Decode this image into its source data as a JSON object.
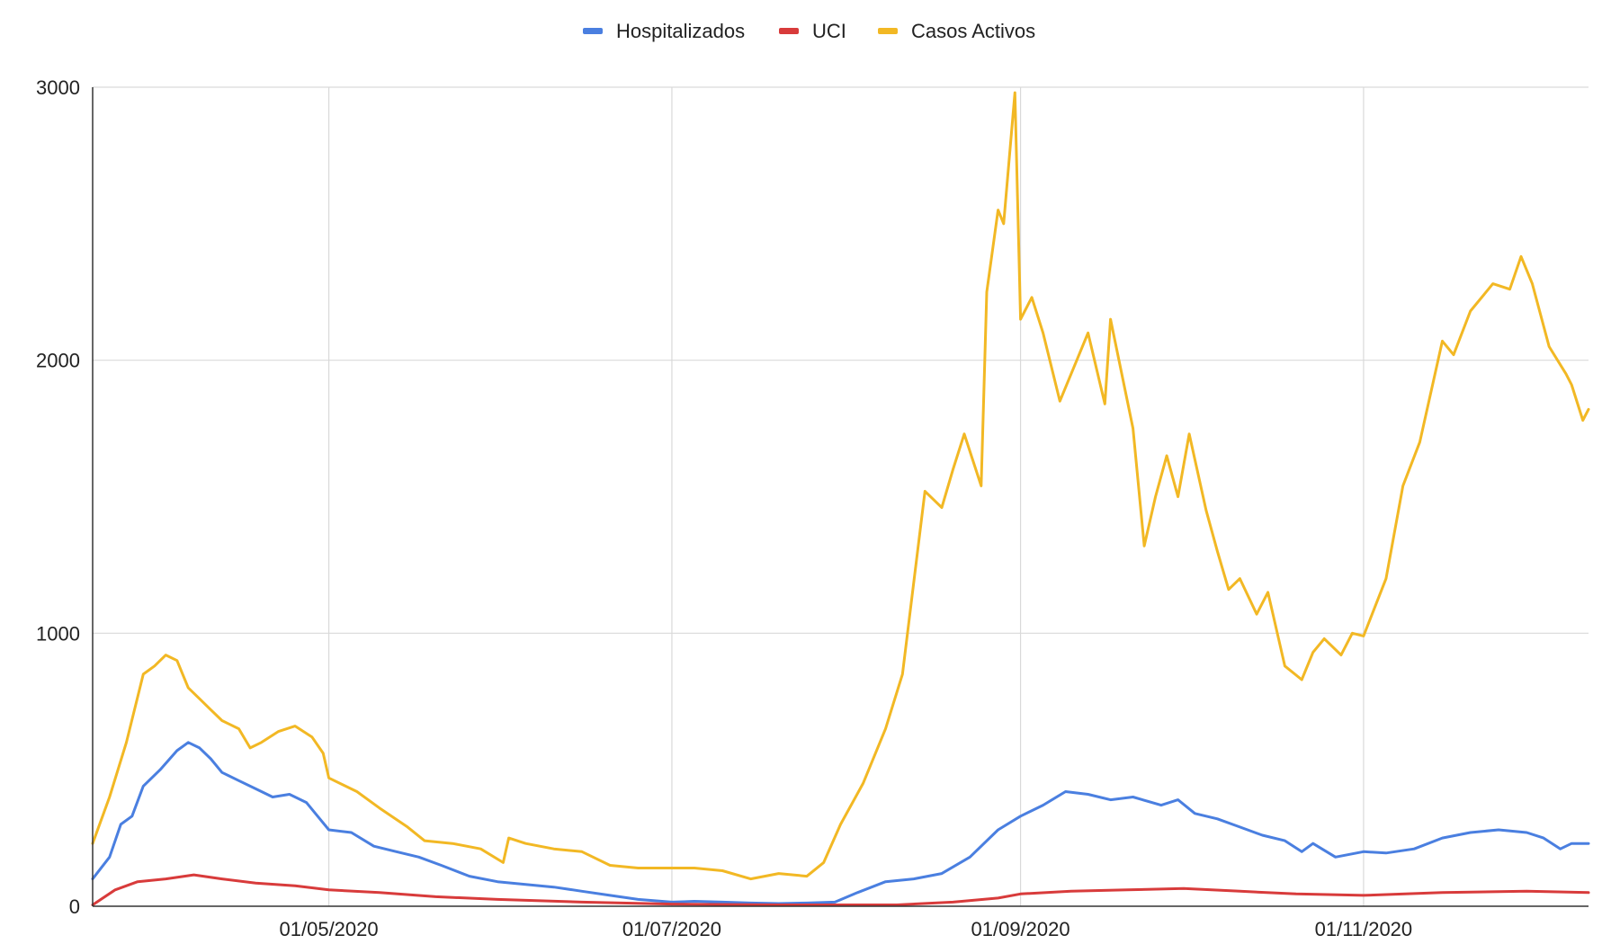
{
  "chart_data": {
    "type": "line",
    "title": "",
    "xlabel": "",
    "ylabel": "",
    "ylim": [
      0,
      3000
    ],
    "y_ticks": [
      0,
      1000,
      2000,
      3000
    ],
    "y_tick_labels": [
      "0",
      "1000",
      "2000",
      "3000"
    ],
    "xlim": [
      "2020-03-20",
      "2020-12-11"
    ],
    "x_ticks": [
      "2020-05-01",
      "2020-07-01",
      "2020-09-01",
      "2020-11-01"
    ],
    "x_tick_labels": [
      "01/05/2020",
      "01/07/2020",
      "01/09/2020",
      "01/11/2020"
    ],
    "grid": true,
    "legend_position": "top",
    "series": [
      {
        "name": "Hospitalizados",
        "color": "#4a7fe0",
        "points": [
          [
            "2020-03-20",
            100
          ],
          [
            "2020-03-23",
            180
          ],
          [
            "2020-03-25",
            300
          ],
          [
            "2020-03-27",
            330
          ],
          [
            "2020-03-29",
            440
          ],
          [
            "2020-04-01",
            500
          ],
          [
            "2020-04-04",
            570
          ],
          [
            "2020-04-06",
            600
          ],
          [
            "2020-04-08",
            580
          ],
          [
            "2020-04-10",
            540
          ],
          [
            "2020-04-12",
            490
          ],
          [
            "2020-04-15",
            460
          ],
          [
            "2020-04-18",
            430
          ],
          [
            "2020-04-21",
            400
          ],
          [
            "2020-04-24",
            410
          ],
          [
            "2020-04-27",
            380
          ],
          [
            "2020-04-29",
            330
          ],
          [
            "2020-05-01",
            280
          ],
          [
            "2020-05-05",
            270
          ],
          [
            "2020-05-09",
            220
          ],
          [
            "2020-05-13",
            200
          ],
          [
            "2020-05-17",
            180
          ],
          [
            "2020-05-21",
            150
          ],
          [
            "2020-05-26",
            110
          ],
          [
            "2020-05-31",
            90
          ],
          [
            "2020-06-05",
            80
          ],
          [
            "2020-06-10",
            70
          ],
          [
            "2020-06-15",
            55
          ],
          [
            "2020-06-20",
            40
          ],
          [
            "2020-06-25",
            25
          ],
          [
            "2020-07-01",
            15
          ],
          [
            "2020-07-05",
            18
          ],
          [
            "2020-07-10",
            15
          ],
          [
            "2020-07-15",
            12
          ],
          [
            "2020-07-20",
            10
          ],
          [
            "2020-07-25",
            12
          ],
          [
            "2020-07-30",
            15
          ],
          [
            "2020-08-03",
            50
          ],
          [
            "2020-08-08",
            90
          ],
          [
            "2020-08-13",
            100
          ],
          [
            "2020-08-18",
            120
          ],
          [
            "2020-08-23",
            180
          ],
          [
            "2020-08-28",
            280
          ],
          [
            "2020-09-01",
            330
          ],
          [
            "2020-09-05",
            370
          ],
          [
            "2020-09-09",
            420
          ],
          [
            "2020-09-13",
            410
          ],
          [
            "2020-09-17",
            390
          ],
          [
            "2020-09-21",
            400
          ],
          [
            "2020-09-26",
            370
          ],
          [
            "2020-09-29",
            390
          ],
          [
            "2020-10-02",
            340
          ],
          [
            "2020-10-06",
            320
          ],
          [
            "2020-10-10",
            290
          ],
          [
            "2020-10-14",
            260
          ],
          [
            "2020-10-18",
            240
          ],
          [
            "2020-10-21",
            200
          ],
          [
            "2020-10-23",
            230
          ],
          [
            "2020-10-27",
            180
          ],
          [
            "2020-11-01",
            200
          ],
          [
            "2020-11-05",
            195
          ],
          [
            "2020-11-10",
            210
          ],
          [
            "2020-11-15",
            250
          ],
          [
            "2020-11-20",
            270
          ],
          [
            "2020-11-25",
            280
          ],
          [
            "2020-11-30",
            270
          ],
          [
            "2020-12-03",
            250
          ],
          [
            "2020-12-06",
            210
          ],
          [
            "2020-12-08",
            230
          ],
          [
            "2020-12-11",
            230
          ]
        ]
      },
      {
        "name": "UCI",
        "color": "#d83b3b",
        "points": [
          [
            "2020-03-20",
            5
          ],
          [
            "2020-03-24",
            60
          ],
          [
            "2020-03-28",
            90
          ],
          [
            "2020-04-02",
            100
          ],
          [
            "2020-04-07",
            115
          ],
          [
            "2020-04-12",
            100
          ],
          [
            "2020-04-18",
            85
          ],
          [
            "2020-04-25",
            75
          ],
          [
            "2020-05-01",
            60
          ],
          [
            "2020-05-10",
            50
          ],
          [
            "2020-05-20",
            35
          ],
          [
            "2020-05-31",
            25
          ],
          [
            "2020-06-15",
            15
          ],
          [
            "2020-07-01",
            8
          ],
          [
            "2020-07-20",
            5
          ],
          [
            "2020-08-10",
            5
          ],
          [
            "2020-08-20",
            15
          ],
          [
            "2020-08-28",
            30
          ],
          [
            "2020-09-01",
            45
          ],
          [
            "2020-09-10",
            55
          ],
          [
            "2020-09-20",
            60
          ],
          [
            "2020-09-30",
            65
          ],
          [
            "2020-10-10",
            55
          ],
          [
            "2020-10-20",
            45
          ],
          [
            "2020-11-01",
            40
          ],
          [
            "2020-11-15",
            50
          ],
          [
            "2020-11-30",
            55
          ],
          [
            "2020-12-11",
            50
          ]
        ]
      },
      {
        "name": "Casos Activos",
        "color": "#f2b824",
        "points": [
          [
            "2020-03-20",
            230
          ],
          [
            "2020-03-23",
            400
          ],
          [
            "2020-03-26",
            600
          ],
          [
            "2020-03-29",
            850
          ],
          [
            "2020-03-31",
            880
          ],
          [
            "2020-04-02",
            920
          ],
          [
            "2020-04-04",
            900
          ],
          [
            "2020-04-06",
            800
          ],
          [
            "2020-04-08",
            760
          ],
          [
            "2020-04-10",
            720
          ],
          [
            "2020-04-12",
            680
          ],
          [
            "2020-04-15",
            650
          ],
          [
            "2020-04-17",
            580
          ],
          [
            "2020-04-19",
            600
          ],
          [
            "2020-04-22",
            640
          ],
          [
            "2020-04-25",
            660
          ],
          [
            "2020-04-28",
            620
          ],
          [
            "2020-04-30",
            560
          ],
          [
            "2020-05-01",
            470
          ],
          [
            "2020-05-06",
            420
          ],
          [
            "2020-05-10",
            360
          ],
          [
            "2020-05-15",
            290
          ],
          [
            "2020-05-18",
            240
          ],
          [
            "2020-05-23",
            230
          ],
          [
            "2020-05-28",
            210
          ],
          [
            "2020-06-01",
            160
          ],
          [
            "2020-06-02",
            250
          ],
          [
            "2020-06-05",
            230
          ],
          [
            "2020-06-10",
            210
          ],
          [
            "2020-06-15",
            200
          ],
          [
            "2020-06-20",
            150
          ],
          [
            "2020-06-25",
            140
          ],
          [
            "2020-07-01",
            140
          ],
          [
            "2020-07-05",
            140
          ],
          [
            "2020-07-10",
            130
          ],
          [
            "2020-07-15",
            100
          ],
          [
            "2020-07-20",
            120
          ],
          [
            "2020-07-25",
            110
          ],
          [
            "2020-07-28",
            160
          ],
          [
            "2020-07-31",
            300
          ],
          [
            "2020-08-04",
            450
          ],
          [
            "2020-08-08",
            650
          ],
          [
            "2020-08-11",
            850
          ],
          [
            "2020-08-15",
            1520
          ],
          [
            "2020-08-18",
            1460
          ],
          [
            "2020-08-20",
            1600
          ],
          [
            "2020-08-22",
            1730
          ],
          [
            "2020-08-25",
            1540
          ],
          [
            "2020-08-26",
            2250
          ],
          [
            "2020-08-28",
            2550
          ],
          [
            "2020-08-29",
            2500
          ],
          [
            "2020-08-31",
            2980
          ],
          [
            "2020-09-01",
            2150
          ],
          [
            "2020-09-03",
            2230
          ],
          [
            "2020-09-05",
            2100
          ],
          [
            "2020-09-08",
            1850
          ],
          [
            "2020-09-11",
            2000
          ],
          [
            "2020-09-13",
            2100
          ],
          [
            "2020-09-16",
            1840
          ],
          [
            "2020-09-17",
            2150
          ],
          [
            "2020-09-21",
            1750
          ],
          [
            "2020-09-23",
            1320
          ],
          [
            "2020-09-25",
            1500
          ],
          [
            "2020-09-27",
            1650
          ],
          [
            "2020-09-29",
            1500
          ],
          [
            "2020-10-01",
            1730
          ],
          [
            "2020-10-04",
            1450
          ],
          [
            "2020-10-06",
            1300
          ],
          [
            "2020-10-08",
            1160
          ],
          [
            "2020-10-10",
            1200
          ],
          [
            "2020-10-13",
            1070
          ],
          [
            "2020-10-15",
            1150
          ],
          [
            "2020-10-18",
            880
          ],
          [
            "2020-10-21",
            830
          ],
          [
            "2020-10-23",
            930
          ],
          [
            "2020-10-25",
            980
          ],
          [
            "2020-10-28",
            920
          ],
          [
            "2020-10-30",
            1000
          ],
          [
            "2020-11-01",
            990
          ],
          [
            "2020-11-05",
            1200
          ],
          [
            "2020-11-08",
            1540
          ],
          [
            "2020-11-11",
            1700
          ],
          [
            "2020-11-15",
            2070
          ],
          [
            "2020-11-17",
            2020
          ],
          [
            "2020-11-20",
            2180
          ],
          [
            "2020-11-24",
            2280
          ],
          [
            "2020-11-27",
            2260
          ],
          [
            "2020-11-29",
            2380
          ],
          [
            "2020-12-01",
            2280
          ],
          [
            "2020-12-04",
            2050
          ],
          [
            "2020-12-07",
            1950
          ],
          [
            "2020-12-08",
            1910
          ],
          [
            "2020-12-10",
            1780
          ],
          [
            "2020-12-11",
            1820
          ]
        ]
      }
    ]
  }
}
